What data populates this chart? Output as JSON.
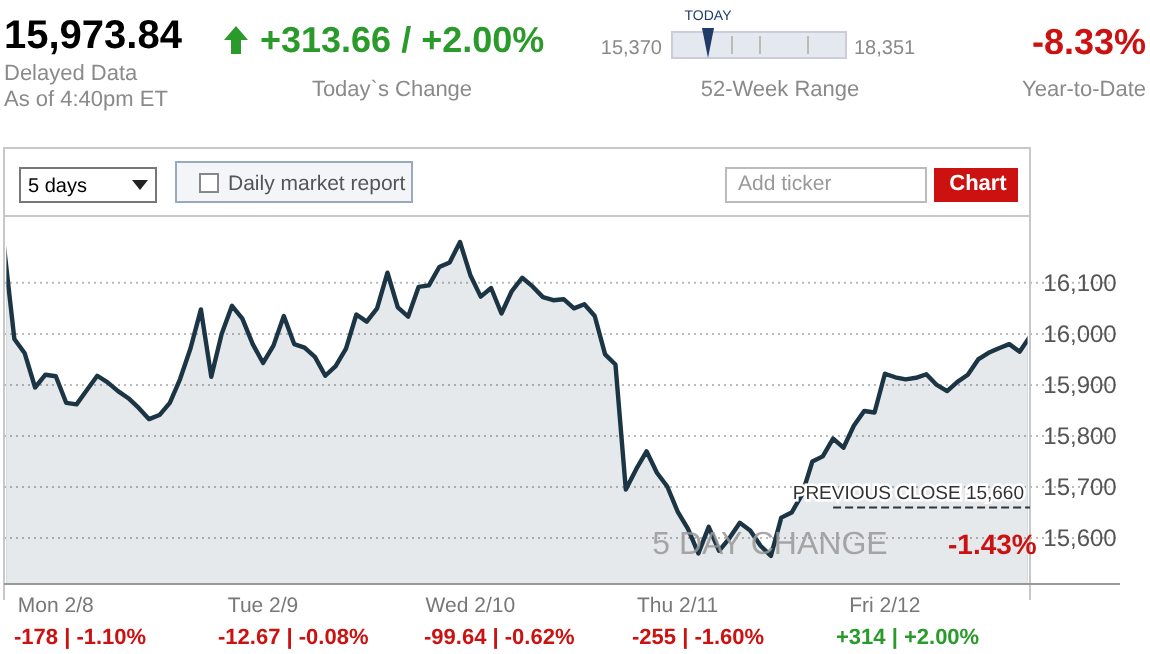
{
  "chart_data": {
    "type": "area",
    "title": "15,973.84",
    "categories": [
      null,
      null,
      null,
      null,
      null,
      "Mon 2/8",
      null,
      null,
      null,
      null,
      null,
      null,
      null,
      null,
      null,
      null,
      null,
      null,
      null,
      null,
      null,
      null,
      null,
      null,
      null,
      "Tue 2/9",
      null,
      null,
      null,
      null,
      null,
      null,
      null,
      null,
      null,
      null,
      null,
      null,
      null,
      null,
      null,
      null,
      null,
      null,
      null,
      "Wed 2/10",
      null,
      null,
      null,
      null,
      null,
      null,
      null,
      null,
      null,
      null,
      null,
      null,
      null,
      null,
      null,
      null,
      null,
      null,
      null,
      "Thu 2/11",
      null,
      null,
      null,
      null,
      null,
      null,
      null,
      null,
      null,
      null,
      null,
      null,
      null,
      null,
      null,
      null,
      null,
      null,
      null,
      "Fri 2/12",
      null,
      null,
      null,
      null,
      null,
      null,
      null,
      null,
      null,
      null,
      null,
      null,
      null,
      null
    ],
    "series": [
      {
        "color": "#1b3545",
        "values": [
          16171,
          15990,
          15962,
          15895,
          15920,
          15917,
          15865,
          15862,
          15890,
          15918,
          15905,
          15888,
          15874,
          15855,
          15833,
          15841,
          15865,
          15912,
          15972,
          16048,
          15916,
          16000,
          16055,
          16030,
          15980,
          15943,
          15977,
          16035,
          15980,
          15973,
          15955,
          15918,
          15937,
          15971,
          16038,
          16024,
          16050,
          16120,
          16052,
          16034,
          16092,
          16095,
          16131,
          16140,
          16180,
          16115,
          16073,
          16090,
          16040,
          16084,
          16110,
          16093,
          16072,
          16066,
          16068,
          16050,
          16058,
          16035,
          15960,
          15940,
          15695,
          15735,
          15770,
          15728,
          15701,
          15652,
          15618,
          15570,
          15622,
          15575,
          15600,
          15630,
          15615,
          15585,
          15565,
          15640,
          15650,
          15685,
          15750,
          15760,
          15795,
          15777,
          15820,
          15849,
          15846,
          15922,
          15915,
          15911,
          15914,
          15921,
          15900,
          15888,
          15906,
          15920,
          15950,
          15963,
          15972,
          15980,
          15965,
          15995
        ]
      }
    ],
    "ylim": [
      15510,
      16231
    ],
    "yticks": [
      {
        "value": 15600,
        "label": "15,600"
      },
      {
        "value": 15700,
        "label": "15,700"
      },
      {
        "value": 15800,
        "label": "15,800"
      },
      {
        "value": 15900,
        "label": "15,900"
      },
      {
        "value": 16000,
        "label": "16,000"
      },
      {
        "value": 16100,
        "label": "16,100"
      }
    ],
    "grid": "y",
    "ref_lines": [
      {
        "axis": "y",
        "value": 15660,
        "label": "PREVIOUS CLOSE 15,660",
        "color": "#333333",
        "line_style": "dashed"
      }
    ],
    "annotations": [
      "Delayed Data",
      "As of 4:40pm ET",
      "+313.66 / +2.00%",
      "Today`s Change",
      "TODAY",
      "15,370",
      "18,351",
      "52-Week Range",
      "-8.33%",
      "Year-to-Date",
      "5 days",
      "Daily market report",
      "Add ticker",
      "Chart",
      "5 DAY CHANGE",
      "-1.43%",
      "-178 | -1.10%",
      "-12.67 | -0.08%",
      "-99.64 | -0.62%",
      "-255 | -1.60%",
      "+314 | +2.00%"
    ]
  }
}
